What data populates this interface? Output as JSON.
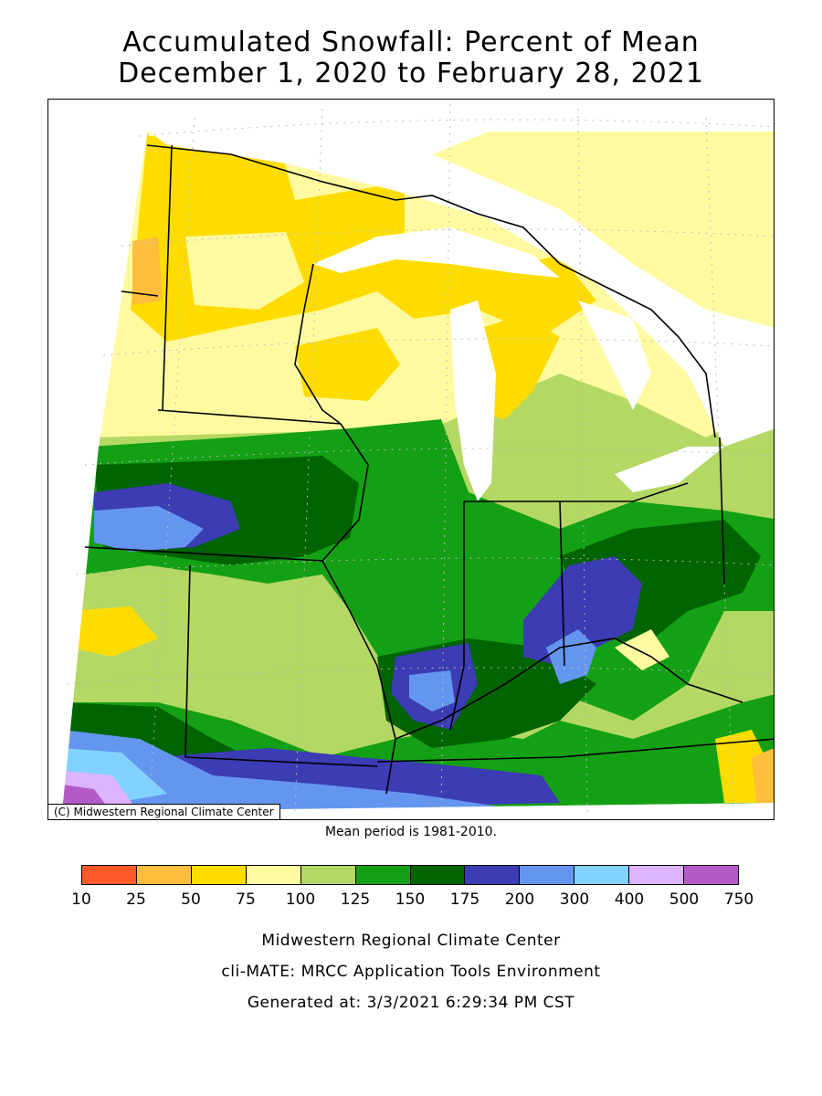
{
  "title_line1": "Accumulated Snowfall: Percent of Mean",
  "title_line2": "December 1, 2020 to February 28, 2021",
  "map": {
    "credit": "(C) Midwestern Regional Climate Center",
    "region": "Midwest United States",
    "background_color": "#ffffff",
    "boundary_color": "#000000",
    "grid_color": "#bbbbbb"
  },
  "mean_period": "Mean period is 1981-2010.",
  "legend": {
    "breaks": [
      "10",
      "25",
      "50",
      "75",
      "100",
      "125",
      "150",
      "175",
      "200",
      "300",
      "400",
      "500",
      "750"
    ],
    "colors": [
      "#ff5a28",
      "#ffbe3c",
      "#ffdc00",
      "#fffaa0",
      "#b4d864",
      "#14a014",
      "#006400",
      "#3c3cb4",
      "#6496f0",
      "#82d2ff",
      "#dcb4ff",
      "#b45ac8"
    ]
  },
  "footer": {
    "line1": "Midwestern Regional Climate Center",
    "line2": "cli-MATE: MRCC Application Tools Environment",
    "line3": "Generated at: 3/3/2021 6:29:34 PM CST"
  }
}
